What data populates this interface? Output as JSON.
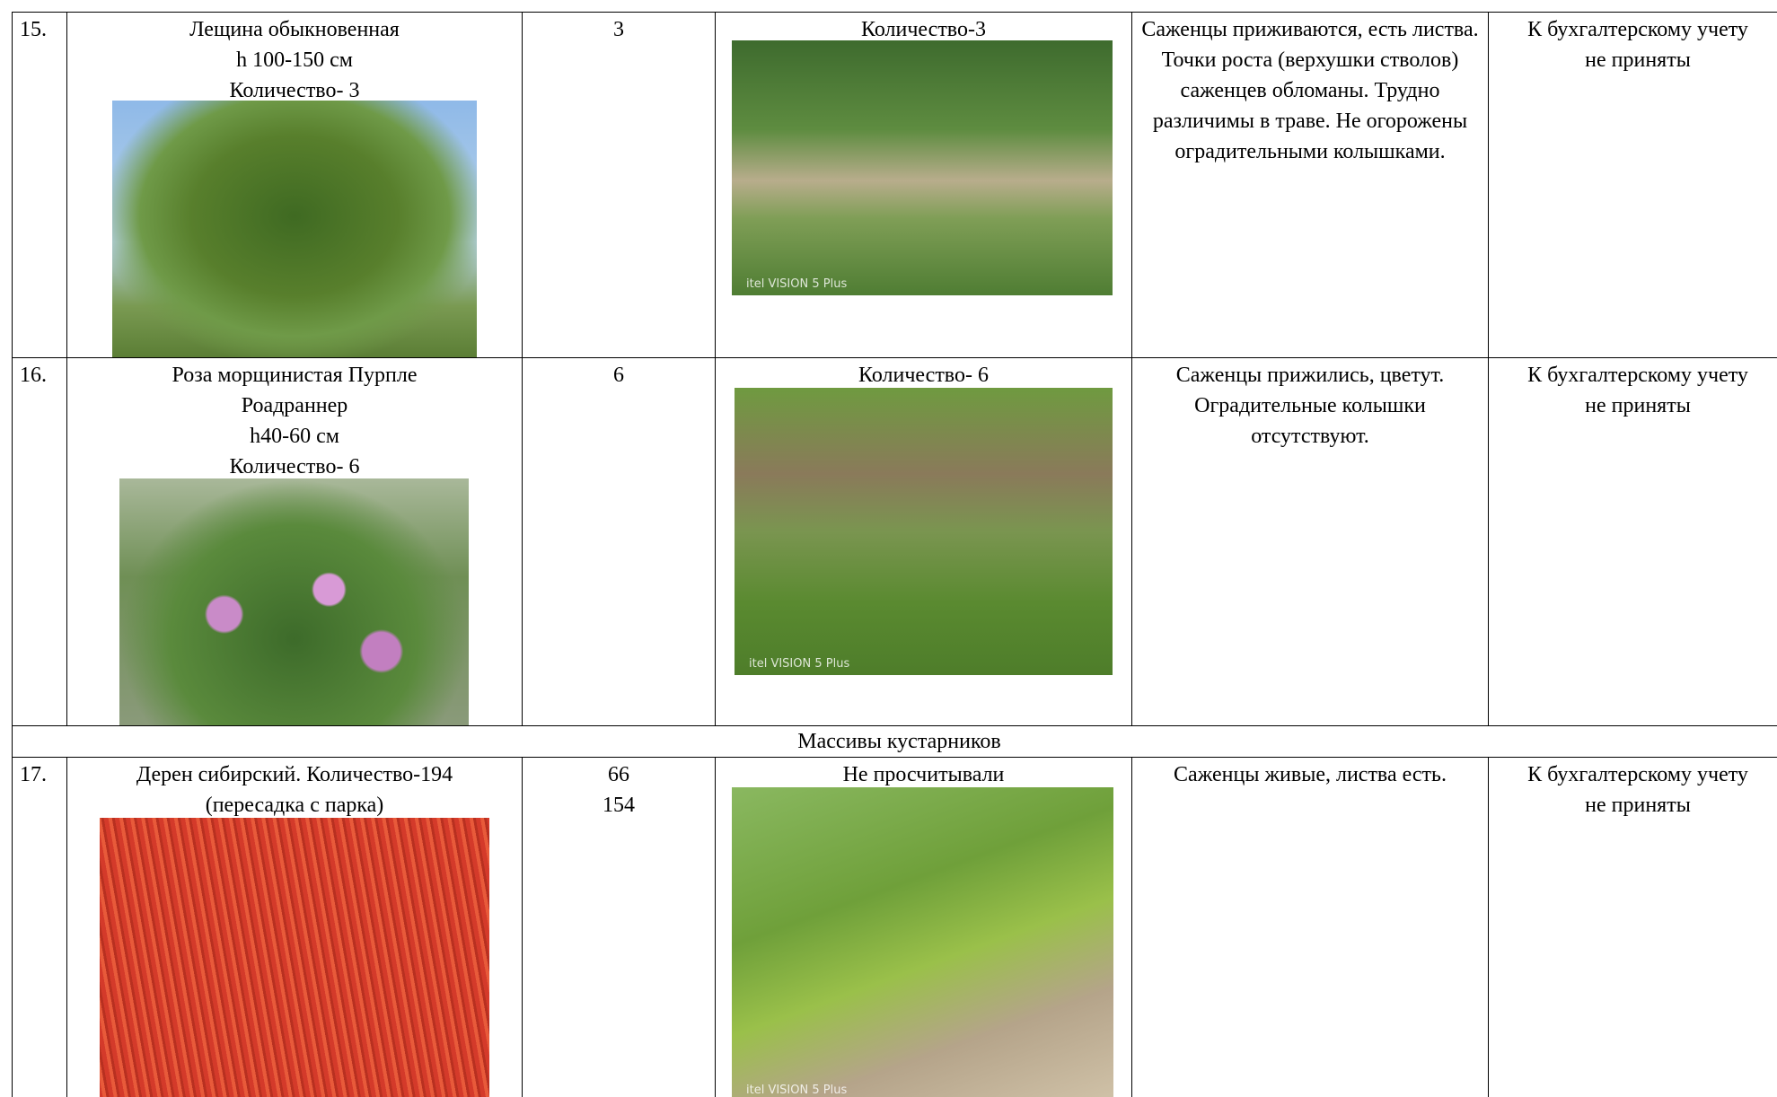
{
  "table": {
    "rows": [
      {
        "number": "15.",
        "name": [
          "Лещина обыкновенная",
          "h 100-150 см",
          "Количество- 3"
        ],
        "planted": [
          "3"
        ],
        "photo_caption": "Количество-3",
        "watermark": "itel VISION 5 Plus",
        "condition": "Саженцы приживаются, есть листва. Точки роста (верхушки стволов) саженцев обломаны. Трудно различимы в траве. Не огорожены оградительными колышками.",
        "accounting": "К бухгалтерскому учету не приняты"
      },
      {
        "number": "16.",
        "name": [
          "Роза морщинистая Пурпле",
          "Роадраннер",
          "h40-60 см",
          "Количество- 6"
        ],
        "planted": [
          "6"
        ],
        "photo_caption": "Количество- 6",
        "watermark": "itel VISION 5 Plus",
        "condition": "Саженцы прижились, цветут. Оградительные колышки отсутствуют.",
        "accounting": "К бухгалтерскому учету не приняты"
      },
      {
        "section": "Массивы кустарников"
      },
      {
        "number": "17.",
        "name": [
          "Дерен сибирский. Количество-194",
          "(пересадка с парка)"
        ],
        "planted": [
          "66",
          "154"
        ],
        "photo_caption": "Не просчитывали",
        "watermark": "itel VISION 5 Plus",
        "condition": "Саженцы живые, листва есть.",
        "accounting": "К бухгалтерскому учету не приняты"
      }
    ]
  }
}
